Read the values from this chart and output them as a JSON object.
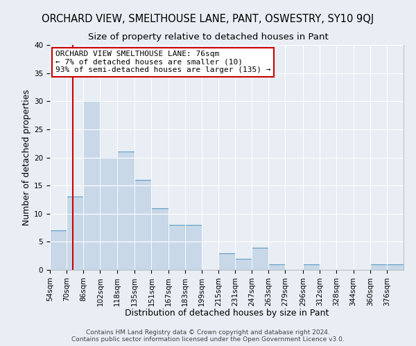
{
  "title": "ORCHARD VIEW, SMELTHOUSE LANE, PANT, OSWESTRY, SY10 9QJ",
  "subtitle": "Size of property relative to detached houses in Pant",
  "xlabel": "Distribution of detached houses by size in Pant",
  "ylabel": "Number of detached properties",
  "bin_labels": [
    "54sqm",
    "70sqm",
    "86sqm",
    "102sqm",
    "118sqm",
    "135sqm",
    "151sqm",
    "167sqm",
    "183sqm",
    "199sqm",
    "215sqm",
    "231sqm",
    "247sqm",
    "263sqm",
    "279sqm",
    "296sqm",
    "312sqm",
    "328sqm",
    "344sqm",
    "360sqm",
    "376sqm"
  ],
  "bin_edges": [
    54,
    70,
    86,
    102,
    118,
    135,
    151,
    167,
    183,
    199,
    215,
    231,
    247,
    263,
    279,
    296,
    312,
    328,
    344,
    360,
    376,
    392
  ],
  "counts": [
    7,
    13,
    30,
    20,
    21,
    16,
    11,
    8,
    8,
    0,
    3,
    2,
    4,
    1,
    0,
    1,
    0,
    0,
    0,
    1,
    1
  ],
  "bar_color": "#c8d8e8",
  "bar_edge_color": "#5f9cc5",
  "vline_x": 76,
  "vline_color": "#cc0000",
  "annotation_line1": "ORCHARD VIEW SMELTHOUSE LANE: 76sqm",
  "annotation_line2": "← 7% of detached houses are smaller (10)",
  "annotation_line3": "93% of semi-detached houses are larger (135) →",
  "annotation_box_color": "#cc0000",
  "ylim": [
    0,
    40
  ],
  "yticks": [
    0,
    5,
    10,
    15,
    20,
    25,
    30,
    35,
    40
  ],
  "footer1": "Contains HM Land Registry data © Crown copyright and database right 2024.",
  "footer2": "Contains public sector information licensed under the Open Government Licence v3.0.",
  "background_color": "#e8eef4",
  "grid_color": "#ffffff",
  "title_fontsize": 10.5,
  "subtitle_fontsize": 9.5,
  "axis_label_fontsize": 9,
  "tick_fontsize": 7.5,
  "footer_fontsize": 6.5,
  "annotation_fontsize": 8
}
